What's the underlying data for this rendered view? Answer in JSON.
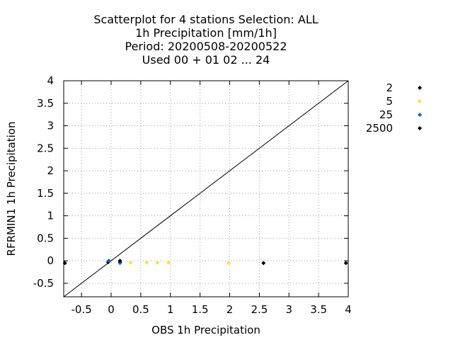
{
  "chart_data": {
    "type": "scatter",
    "title_lines": [
      "Scatterplot for    4 stations Selection: ALL",
      "1h Precipitation [mm/1h]",
      "Period: 20200508-20200522",
      "Used  00 + 01 02 ... 24"
    ],
    "xlabel": "OBS 1h Precipitation",
    "ylabel": "RFRMIN1 1h Precipitation",
    "xlim": [
      -0.8,
      4
    ],
    "ylim": [
      -0.8,
      4
    ],
    "xticks": [
      "-0.5",
      "0",
      "0.5",
      "1",
      "1.5",
      "2",
      "2.5",
      "3",
      "3.5",
      "4"
    ],
    "xtick_values": [
      -0.5,
      0,
      0.5,
      1,
      1.5,
      2,
      2.5,
      3,
      3.5,
      4
    ],
    "yticks": [
      "-0.5",
      "0",
      "0.5",
      "1",
      "1.5",
      "2",
      "2.5",
      "3",
      "3.5",
      "4"
    ],
    "ytick_values": [
      -0.5,
      0,
      0.5,
      1,
      1.5,
      2,
      2.5,
      3,
      3.5,
      4
    ],
    "grid": true,
    "legend_placement": "right",
    "diagonal_line": true,
    "series": [
      {
        "name": "2",
        "color": "#000000",
        "points": [
          [
            -0.78,
            -0.05
          ],
          [
            -0.05,
            -0.03
          ],
          [
            0.15,
            -0.03
          ],
          [
            2.57,
            -0.05
          ],
          [
            3.96,
            -0.05
          ]
        ]
      },
      {
        "name": "5",
        "color": "#f0e442",
        "points": [
          [
            0.33,
            -0.04
          ],
          [
            0.6,
            -0.04
          ],
          [
            0.78,
            -0.04
          ],
          [
            0.97,
            -0.04
          ],
          [
            1.98,
            -0.05
          ]
        ]
      },
      {
        "name": "25",
        "color": "#0072b2",
        "points": [
          [
            -0.04,
            0.0
          ],
          [
            0.15,
            -0.05
          ]
        ]
      },
      {
        "name": "2500",
        "color": "#000000",
        "points": [
          [
            0.15,
            0.0
          ]
        ]
      }
    ]
  }
}
